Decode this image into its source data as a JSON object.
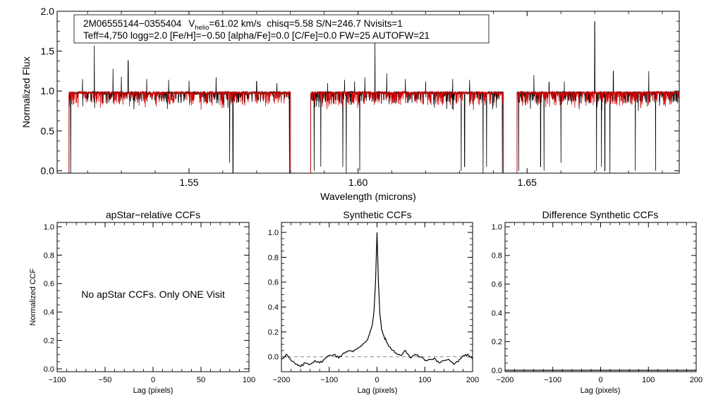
{
  "spectrum": {
    "header_line1": {
      "name": "2M06555144−0355404",
      "v_pre": "V",
      "v_sub": "helio",
      "v_post": "=61.02 km/s",
      "rest": "chisq=5.58  S/N=246.7  Nvisits=1"
    },
    "header_line2": "Teff=4,750 logg=2.0 [Fe/H]=−0.50 [alpha/Fe]=0.0 [C/Fe]=0.0 FW=25 AUTOFW=21",
    "xlabel": "Wavelength (microns)",
    "ylabel": "Normalized Flux",
    "xlim": [
      1.511,
      1.695
    ],
    "ylim": [
      -0.03,
      2.0
    ],
    "xticks": [
      1.55,
      1.6,
      1.65
    ],
    "xtick_labels": [
      "1.55",
      "1.60",
      "1.65"
    ],
    "yticks": [
      0.0,
      0.5,
      1.0,
      1.5,
      2.0
    ],
    "ytick_labels": [
      "0.0",
      "0.5",
      "1.0",
      "1.5",
      "2.0"
    ],
    "observed_color": "#000000",
    "model_color": "#d40000"
  },
  "ccf_apstar": {
    "title": "apStar−relative CCFs",
    "xlabel": "Lag (pixels)",
    "ylabel": "Normalized CCF",
    "message": "No apStar CCFs.  Only ONE Visit",
    "xlim": [
      -100,
      100
    ],
    "ylim": [
      -0.02,
      1.03
    ],
    "xticks": [
      -100,
      -50,
      0,
      50,
      100
    ],
    "xtick_labels": [
      "−100",
      "−50",
      "0",
      "50",
      "100"
    ],
    "yticks": [
      0.0,
      0.2,
      0.4,
      0.6,
      0.8,
      1.0
    ],
    "ytick_labels": [
      "0.0",
      "0.2",
      "0.4",
      "0.6",
      "0.8",
      "1.0"
    ]
  },
  "ccf_synthetic": {
    "title": "Synthetic CCFs",
    "xlabel": "Lag (pixels)",
    "xlim": [
      -200,
      200
    ],
    "ylim": [
      -0.12,
      1.08
    ],
    "xticks": [
      -200,
      -100,
      0,
      100,
      200
    ],
    "xtick_labels": [
      "−200",
      "−100",
      "0",
      "100",
      "200"
    ],
    "yticks": [
      0.0,
      0.2,
      0.4,
      0.6,
      0.8,
      1.0
    ],
    "ytick_labels": [
      "0.0",
      "0.2",
      "0.4",
      "0.6",
      "0.8",
      "1.0"
    ]
  },
  "ccf_difference": {
    "title": "Difference Synthetic CCFs",
    "xlabel": "Lag (pixels)",
    "xlim": [
      -200,
      200
    ],
    "ylim": [
      -0.01,
      1.03
    ],
    "xticks": [
      -200,
      -100,
      0,
      100,
      200
    ],
    "xtick_labels": [
      "−200",
      "−100",
      "0",
      "100",
      "200"
    ],
    "yticks": [
      0.0,
      0.2,
      0.4,
      0.6,
      0.8,
      1.0
    ],
    "ytick_labels": [
      "0.0",
      "0.2",
      "0.4",
      "0.6",
      "0.8",
      "1.0"
    ]
  },
  "chart_data": [
    {
      "type": "line",
      "title": "2M06555144−0355404  Vhelio=61.02 km/s  chisq=5.58  S/N=246.7  Nvisits=1",
      "xlabel": "Wavelength (microns)",
      "ylabel": "Normalized Flux",
      "xlim": [
        1.511,
        1.695
      ],
      "ylim": [
        -0.03,
        2.0
      ],
      "chips": [
        [
          1.5145,
          1.58
        ],
        [
          1.586,
          1.643
        ],
        [
          1.647,
          1.696
        ]
      ],
      "continuum": 0.98,
      "emission_spikes": [
        [
          1.5185,
          1.15
        ],
        [
          1.522,
          1.57
        ],
        [
          1.5275,
          1.28
        ],
        [
          1.53,
          1.18
        ],
        [
          1.532,
          1.38
        ],
        [
          1.5375,
          1.15
        ],
        [
          1.544,
          1.14
        ],
        [
          1.55,
          1.13
        ],
        [
          1.558,
          1.17
        ],
        [
          1.562,
          1.1
        ],
        [
          1.57,
          1.12
        ],
        [
          1.576,
          1.1
        ],
        [
          1.591,
          1.1
        ],
        [
          1.596,
          1.14
        ],
        [
          1.599,
          1.12
        ],
        [
          1.602,
          1.17
        ],
        [
          1.605,
          1.64
        ],
        [
          1.6085,
          1.22
        ],
        [
          1.614,
          1.15
        ],
        [
          1.62,
          1.12
        ],
        [
          1.628,
          1.15
        ],
        [
          1.633,
          1.14
        ],
        [
          1.638,
          1.16
        ],
        [
          1.644,
          1.22
        ],
        [
          1.652,
          1.2
        ],
        [
          1.6565,
          1.11
        ],
        [
          1.661,
          1.12
        ],
        [
          1.67,
          1.87
        ],
        [
          1.6755,
          1.25
        ],
        [
          1.686,
          1.25
        ],
        [
          1.688,
          1.64
        ]
      ],
      "dropouts": [
        [
          1.515,
          -0.03
        ],
        [
          1.562,
          0.1
        ],
        [
          1.563,
          -0.03
        ],
        [
          1.5797,
          -0.03
        ],
        [
          1.587,
          0.0
        ],
        [
          1.589,
          0.05
        ],
        [
          1.5955,
          0.05
        ],
        [
          1.5965,
          -0.03
        ],
        [
          1.6005,
          0.0
        ],
        [
          1.6305,
          0.0
        ],
        [
          1.6315,
          0.05
        ],
        [
          1.637,
          -0.03
        ],
        [
          1.638,
          0.05
        ],
        [
          1.6427,
          -0.03
        ],
        [
          1.6475,
          0.0
        ],
        [
          1.654,
          0.05
        ],
        [
          1.655,
          0.0
        ],
        [
          1.66,
          0.1
        ],
        [
          1.6705,
          0.0
        ],
        [
          1.672,
          0.05
        ],
        [
          1.673,
          0.0
        ],
        [
          1.6745,
          -0.03
        ],
        [
          1.682,
          0.0
        ],
        [
          1.688,
          0.0
        ]
      ]
    },
    {
      "type": "line",
      "title": "Synthetic CCFs",
      "xlabel": "Lag (pixels)",
      "xlim": [
        -200,
        200
      ],
      "ylim": [
        -0.12,
        1.08
      ],
      "x": [
        -200,
        -190,
        -180,
        -170,
        -160,
        -150,
        -140,
        -130,
        -120,
        -110,
        -100,
        -90,
        -80,
        -70,
        -60,
        -50,
        -40,
        -30,
        -20,
        -15,
        -10,
        -6,
        -3,
        0,
        3,
        6,
        10,
        15,
        20,
        30,
        40,
        50,
        60,
        70,
        80,
        90,
        100,
        110,
        120,
        130,
        140,
        150,
        160,
        170,
        180,
        190,
        200
      ],
      "y": [
        -0.02,
        0.02,
        -0.03,
        -0.06,
        -0.08,
        -0.05,
        -0.06,
        -0.03,
        -0.05,
        -0.02,
        0.01,
        0.02,
        -0.01,
        0.03,
        0.05,
        0.04,
        0.07,
        0.1,
        0.14,
        0.19,
        0.25,
        0.38,
        0.62,
        1.0,
        0.6,
        0.34,
        0.21,
        0.16,
        0.12,
        0.06,
        0.03,
        0.01,
        0.05,
        -0.01,
        0.02,
        0.0,
        -0.03,
        -0.02,
        -0.01,
        -0.05,
        -0.03,
        -0.02,
        -0.06,
        -0.04,
        0.01,
        0.02,
        -0.02
      ],
      "reference_line_y": 0.0
    },
    {
      "type": "line",
      "title": "Difference Synthetic CCFs",
      "xlabel": "Lag (pixels)",
      "xlim": [
        -200,
        200
      ],
      "ylim": [
        -0.01,
        1.03
      ],
      "x": [
        -200,
        200
      ],
      "y": [
        0.0,
        0.0
      ]
    }
  ]
}
